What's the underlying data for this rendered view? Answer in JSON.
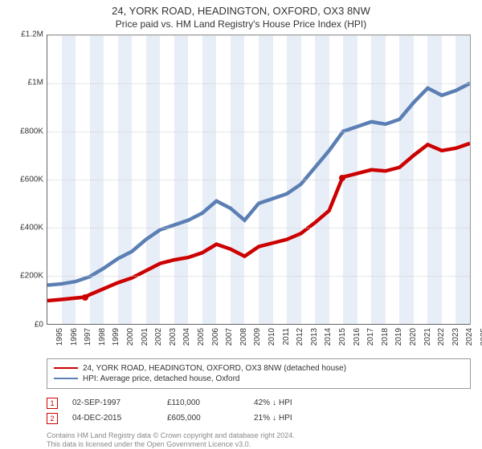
{
  "title_line1": "24, YORK ROAD, HEADINGTON, OXFORD, OX3 8NW",
  "title_line2": "Price paid vs. HM Land Registry's House Price Index (HPI)",
  "chart": {
    "type": "line",
    "background_color": "#ffffff",
    "band_color": "#e8eef7",
    "grid_color": "#cfcfcf",
    "axis_color": "#666666",
    "x": {
      "min": 1995,
      "max": 2025,
      "ticks": [
        1995,
        1996,
        1997,
        1998,
        1999,
        2000,
        2001,
        2002,
        2003,
        2004,
        2005,
        2006,
        2007,
        2008,
        2009,
        2010,
        2011,
        2012,
        2013,
        2014,
        2015,
        2016,
        2017,
        2018,
        2019,
        2020,
        2021,
        2022,
        2023,
        2024,
        2025
      ]
    },
    "y": {
      "min": 0,
      "max": 1200000,
      "ticks": [
        {
          "v": 0,
          "label": "£0"
        },
        {
          "v": 200000,
          "label": "£200K"
        },
        {
          "v": 400000,
          "label": "£400K"
        },
        {
          "v": 600000,
          "label": "£600K"
        },
        {
          "v": 800000,
          "label": "£800K"
        },
        {
          "v": 1000000,
          "label": "£1M"
        },
        {
          "v": 1200000,
          "label": "£1.2M"
        }
      ]
    },
    "series": [
      {
        "id": "hpi",
        "label": "HPI: Average price, detached house, Oxford",
        "color": "#5b7fb4",
        "line_width": 1.5,
        "points": [
          [
            1995,
            160000
          ],
          [
            1996,
            165000
          ],
          [
            1997,
            175000
          ],
          [
            1998,
            195000
          ],
          [
            1999,
            230000
          ],
          [
            2000,
            270000
          ],
          [
            2001,
            300000
          ],
          [
            2002,
            350000
          ],
          [
            2003,
            390000
          ],
          [
            2004,
            410000
          ],
          [
            2005,
            430000
          ],
          [
            2006,
            460000
          ],
          [
            2007,
            510000
          ],
          [
            2008,
            480000
          ],
          [
            2009,
            430000
          ],
          [
            2010,
            500000
          ],
          [
            2011,
            520000
          ],
          [
            2012,
            540000
          ],
          [
            2013,
            580000
          ],
          [
            2014,
            650000
          ],
          [
            2015,
            720000
          ],
          [
            2016,
            800000
          ],
          [
            2017,
            820000
          ],
          [
            2018,
            840000
          ],
          [
            2019,
            830000
          ],
          [
            2020,
            850000
          ],
          [
            2021,
            920000
          ],
          [
            2022,
            980000
          ],
          [
            2023,
            950000
          ],
          [
            2024,
            970000
          ],
          [
            2025,
            1000000
          ]
        ]
      },
      {
        "id": "property",
        "label": "24, YORK ROAD, HEADINGTON, OXFORD, OX3 8NW (detached house)",
        "color": "#cc0000",
        "line_width": 1.5,
        "points": [
          [
            1995,
            95000
          ],
          [
            1996,
            100000
          ],
          [
            1997.67,
            110000
          ],
          [
            1998,
            120000
          ],
          [
            1999,
            145000
          ],
          [
            2000,
            170000
          ],
          [
            2001,
            190000
          ],
          [
            2002,
            220000
          ],
          [
            2003,
            250000
          ],
          [
            2004,
            265000
          ],
          [
            2005,
            275000
          ],
          [
            2006,
            295000
          ],
          [
            2007,
            330000
          ],
          [
            2008,
            310000
          ],
          [
            2009,
            280000
          ],
          [
            2010,
            320000
          ],
          [
            2011,
            335000
          ],
          [
            2012,
            350000
          ],
          [
            2013,
            375000
          ],
          [
            2014,
            420000
          ],
          [
            2015,
            470000
          ],
          [
            2015.93,
            605000
          ],
          [
            2016,
            610000
          ],
          [
            2017,
            625000
          ],
          [
            2018,
            640000
          ],
          [
            2019,
            635000
          ],
          [
            2020,
            650000
          ],
          [
            2021,
            700000
          ],
          [
            2022,
            745000
          ],
          [
            2023,
            720000
          ],
          [
            2024,
            730000
          ],
          [
            2025,
            750000
          ]
        ]
      }
    ],
    "sale_markers": [
      {
        "n": 1,
        "x": 1997.67,
        "y": 110000,
        "color": "#cc0000"
      },
      {
        "n": 2,
        "x": 2015.93,
        "y": 605000,
        "color": "#cc0000"
      }
    ]
  },
  "legend": [
    {
      "color": "#cc0000",
      "text": "24, YORK ROAD, HEADINGTON, OXFORD, OX3 8NW (detached house)"
    },
    {
      "color": "#5b7fb4",
      "text": "HPI: Average price, detached house, Oxford"
    }
  ],
  "sales": [
    {
      "n": 1,
      "color": "#cc0000",
      "date": "02-SEP-1997",
      "price": "£110,000",
      "diff_pct": "42%",
      "diff_dir": "↓",
      "diff_label": "HPI"
    },
    {
      "n": 2,
      "color": "#cc0000",
      "date": "04-DEC-2015",
      "price": "£605,000",
      "diff_pct": "21%",
      "diff_dir": "↓",
      "diff_label": "HPI"
    }
  ],
  "credits_line1": "Contains HM Land Registry data © Crown copyright and database right 2024.",
  "credits_line2": "This data is licensed under the Open Government Licence v3.0."
}
